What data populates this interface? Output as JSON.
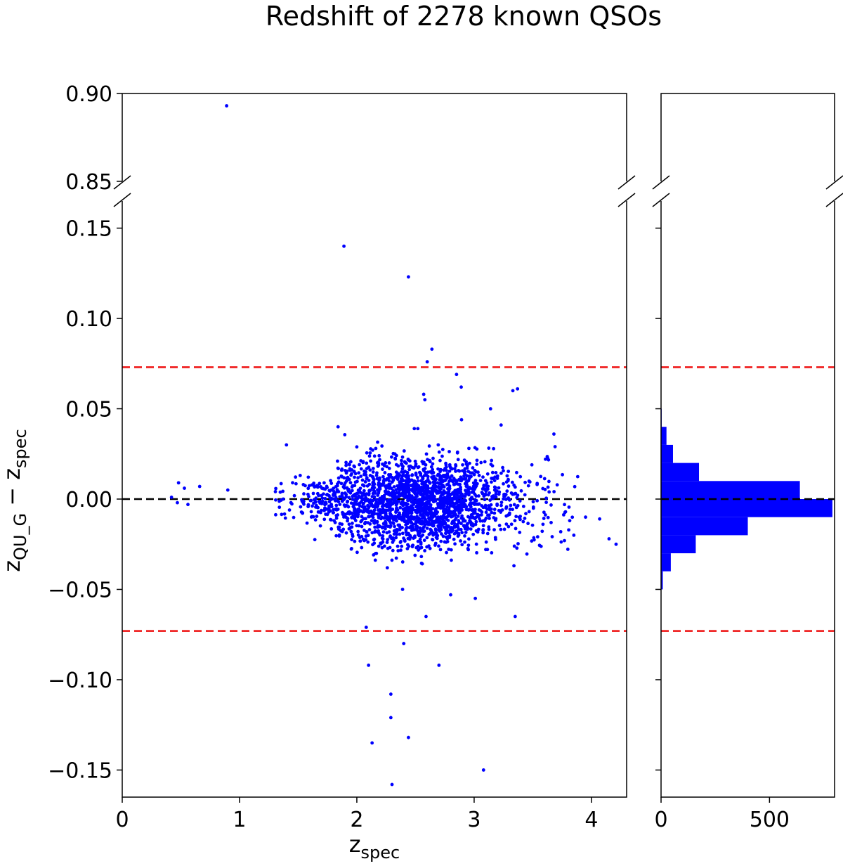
{
  "figure": {
    "title": "Redshift of 2278 known QSOs"
  },
  "chart_data": [
    {
      "panel": "scatter-top",
      "type": "scatter",
      "title": "Redshift of 2278 known QSOs",
      "xlim": [
        0,
        4.3
      ],
      "ylim": [
        0.85,
        0.9
      ],
      "yticks": [
        "0.90",
        "0.85"
      ],
      "ytick_values": [
        0.9,
        0.85
      ],
      "broken_axis": true,
      "points": [
        [
          0.89,
          0.893
        ]
      ]
    },
    {
      "panel": "scatter-main",
      "type": "scatter",
      "xlabel": "z",
      "xlabel_sub": "spec",
      "ylabel_parts": [
        "z",
        "QU_G",
        " − z",
        "spec"
      ],
      "xlim": [
        0,
        4.3
      ],
      "ylim": [
        -0.165,
        0.165
      ],
      "xticks": [
        "0",
        "1",
        "2",
        "3",
        "4"
      ],
      "xtick_values": [
        0,
        1,
        2,
        3,
        4
      ],
      "yticks": [
        "0.15",
        "0.10",
        "0.05",
        "0.00",
        "−0.05",
        "−0.10",
        "−0.15"
      ],
      "ytick_values": [
        0.15,
        0.1,
        0.05,
        0.0,
        -0.05,
        -0.1,
        -0.15
      ],
      "point_color": "#0000ff",
      "reference_lines": [
        {
          "y": 0.073,
          "color": "#ee1111",
          "style": "dashed"
        },
        {
          "y": -0.073,
          "color": "#ee1111",
          "style": "dashed"
        },
        {
          "y": 0.0,
          "color": "#000000",
          "style": "dashed"
        }
      ],
      "n_points": 2278,
      "cloud": {
        "x_mean": 2.5,
        "x_sd": 0.45,
        "x_range": [
          1.3,
          4.2
        ],
        "y_sd": 0.012,
        "y_max_abs": 0.048
      },
      "outliers": [
        [
          1.89,
          0.14
        ],
        [
          2.44,
          0.123
        ],
        [
          2.64,
          0.083
        ],
        [
          2.6,
          0.076
        ],
        [
          2.85,
          0.069
        ],
        [
          2.89,
          0.062
        ],
        [
          2.57,
          0.058
        ],
        [
          2.58,
          0.055
        ],
        [
          3.37,
          0.061
        ],
        [
          3.33,
          0.06
        ],
        [
          3.14,
          0.05
        ],
        [
          1.84,
          0.04
        ],
        [
          2.49,
          0.039
        ],
        [
          2.52,
          0.039
        ],
        [
          3.23,
          0.041
        ],
        [
          3.68,
          0.036
        ],
        [
          3.69,
          0.029
        ],
        [
          1.4,
          0.03
        ],
        [
          0.48,
          0.009
        ],
        [
          0.53,
          0.006
        ],
        [
          0.66,
          0.007
        ],
        [
          0.9,
          0.005
        ],
        [
          0.42,
          0.001
        ],
        [
          0.56,
          -0.003
        ],
        [
          0.47,
          -0.002
        ],
        [
          3.95,
          -0.01
        ],
        [
          4.07,
          -0.011
        ],
        [
          4.21,
          -0.025
        ],
        [
          4.15,
          -0.022
        ],
        [
          3.77,
          -0.023
        ],
        [
          3.85,
          -0.02
        ],
        [
          2.08,
          -0.071
        ],
        [
          2.39,
          -0.05
        ],
        [
          2.59,
          -0.065
        ],
        [
          2.8,
          -0.053
        ],
        [
          3.01,
          -0.055
        ],
        [
          3.35,
          -0.065
        ],
        [
          2.4,
          -0.08
        ],
        [
          2.1,
          -0.092
        ],
        [
          2.7,
          -0.092
        ],
        [
          2.29,
          -0.108
        ],
        [
          2.29,
          -0.121
        ],
        [
          2.44,
          -0.132
        ],
        [
          2.13,
          -0.135
        ],
        [
          3.08,
          -0.15
        ],
        [
          2.3,
          -0.158
        ]
      ]
    },
    {
      "panel": "histogram",
      "type": "bar",
      "orientation": "horizontal",
      "xlim": [
        0,
        800
      ],
      "xticks": [
        "0",
        "500"
      ],
      "xtick_values": [
        0,
        500
      ],
      "ylim": [
        -0.165,
        0.165
      ],
      "bin_edges": [
        -0.05,
        -0.04,
        -0.03,
        -0.02,
        -0.01,
        0.0,
        0.01,
        0.02,
        0.03,
        0.04,
        0.05,
        0.06
      ],
      "counts": [
        8,
        45,
        160,
        400,
        790,
        640,
        175,
        55,
        25,
        3,
        1
      ],
      "color": "#0000ff",
      "reference_lines": [
        {
          "y": 0.073,
          "color": "#ee1111",
          "style": "dashed"
        },
        {
          "y": -0.073,
          "color": "#ee1111",
          "style": "dashed"
        },
        {
          "y": 0.0,
          "color": "#000000",
          "style": "dashed"
        }
      ]
    }
  ]
}
